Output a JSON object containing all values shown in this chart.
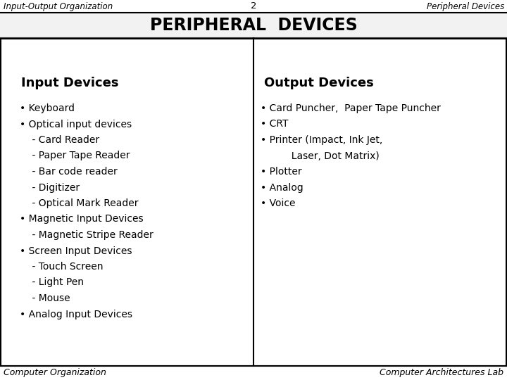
{
  "header_left": "Input-Output Organization",
  "header_center": "2",
  "header_right": "Peripheral Devices",
  "title": "PERIPHERAL  DEVICES",
  "input_heading": "Input Devices",
  "output_heading": "Output Devices",
  "input_items": [
    "• Keyboard",
    "• Optical input devices",
    "    - Card Reader",
    "    - Paper Tape Reader",
    "    - Bar code reader",
    "    - Digitizer",
    "    - Optical Mark Reader",
    "• Magnetic Input Devices",
    "    - Magnetic Stripe Reader",
    "• Screen Input Devices",
    "    - Touch Screen",
    "    - Light Pen",
    "    - Mouse",
    "• Analog Input Devices"
  ],
  "output_items": [
    "• Card Puncher,  Paper Tape Puncher",
    "• CRT",
    "• Printer (Impact, Ink Jet,",
    "          Laser, Dot Matrix)",
    "• Plotter",
    "• Analog",
    "• Voice"
  ],
  "footer_left": "Computer Organization",
  "footer_right": "Computer Architectures Lab",
  "bg_color": "#ffffff",
  "border_color": "#000000",
  "text_color": "#000000",
  "header_fontsize": 8.5,
  "title_fontsize": 17,
  "section_heading_fontsize": 13,
  "body_fontsize": 10,
  "footer_fontsize": 9
}
